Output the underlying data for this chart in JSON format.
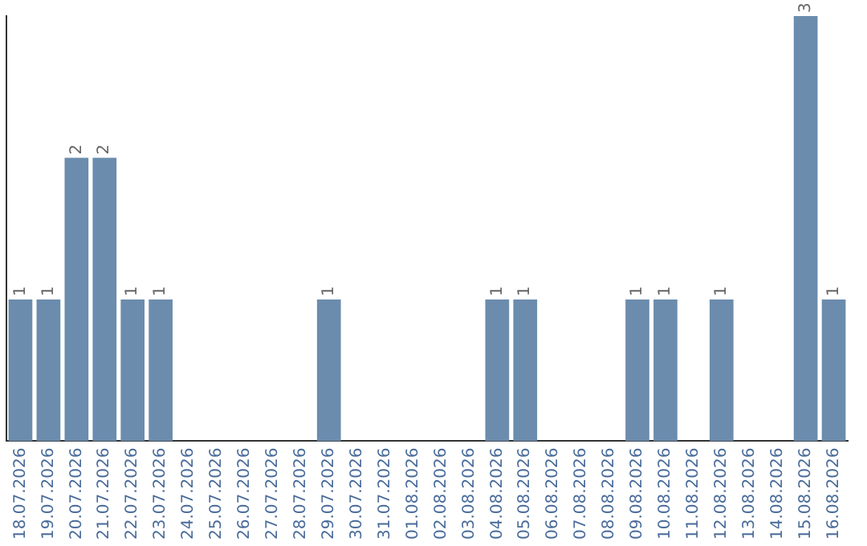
{
  "chart_data": {
    "type": "bar",
    "categories": [
      "18.07.2026",
      "19.07.2026",
      "20.07.2026",
      "21.07.2026",
      "22.07.2026",
      "23.07.2026",
      "24.07.2026",
      "25.07.2026",
      "26.07.2026",
      "27.07.2026",
      "28.07.2026",
      "29.07.2026",
      "30.07.2026",
      "31.07.2026",
      "01.08.2026",
      "02.08.2026",
      "03.08.2026",
      "04.08.2026",
      "05.08.2026",
      "06.08.2026",
      "07.08.2026",
      "08.08.2026",
      "09.08.2026",
      "10.08.2026",
      "11.08.2026",
      "12.08.2026",
      "13.08.2026",
      "14.08.2026",
      "15.08.2026",
      "16.08.2026"
    ],
    "values": [
      1,
      1,
      2,
      2,
      1,
      1,
      0,
      0,
      0,
      0,
      0,
      1,
      0,
      0,
      0,
      0,
      0,
      1,
      1,
      0,
      0,
      0,
      1,
      1,
      0,
      1,
      0,
      0,
      3,
      1
    ],
    "value_labels": [
      "1",
      "1",
      "2",
      "2",
      "1",
      "1",
      null,
      null,
      null,
      null,
      null,
      "1",
      null,
      null,
      null,
      null,
      null,
      "1",
      "1",
      null,
      null,
      null,
      "1",
      "1",
      null,
      "1",
      null,
      null,
      "3",
      "1"
    ],
    "color": "#6b8cad",
    "grid": false,
    "legend": false,
    "tick_labels": "x"
  }
}
